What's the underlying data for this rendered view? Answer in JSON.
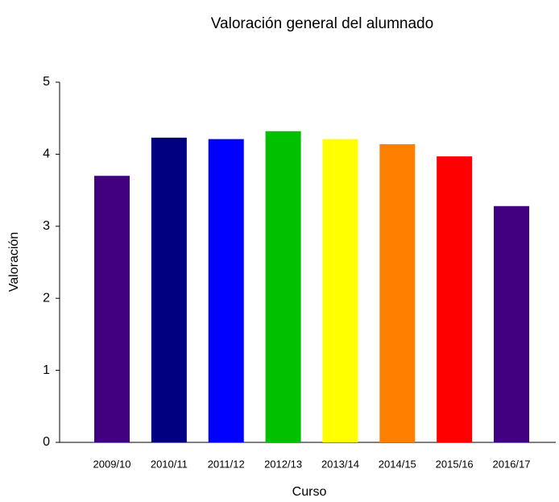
{
  "chart_data": {
    "type": "bar",
    "title": "Valoración general del alumnado",
    "x_label": "Curso",
    "y_label": "Valoración",
    "categories": [
      "2009/10",
      "2010/11",
      "2011/12",
      "2012/13",
      "2013/14",
      "2014/15",
      "2015/16",
      "2016/17"
    ],
    "values": [
      3.7,
      4.23,
      4.21,
      4.32,
      4.21,
      4.14,
      3.97,
      3.28
    ],
    "colors": [
      "#400080",
      "#000080",
      "#0000ff",
      "#00c000",
      "#ffff00",
      "#ff8000",
      "#ff0000",
      "#400080"
    ],
    "ylim": [
      0,
      5
    ],
    "yticks": [
      0,
      1,
      2,
      3,
      4,
      5
    ],
    "grid": false
  }
}
